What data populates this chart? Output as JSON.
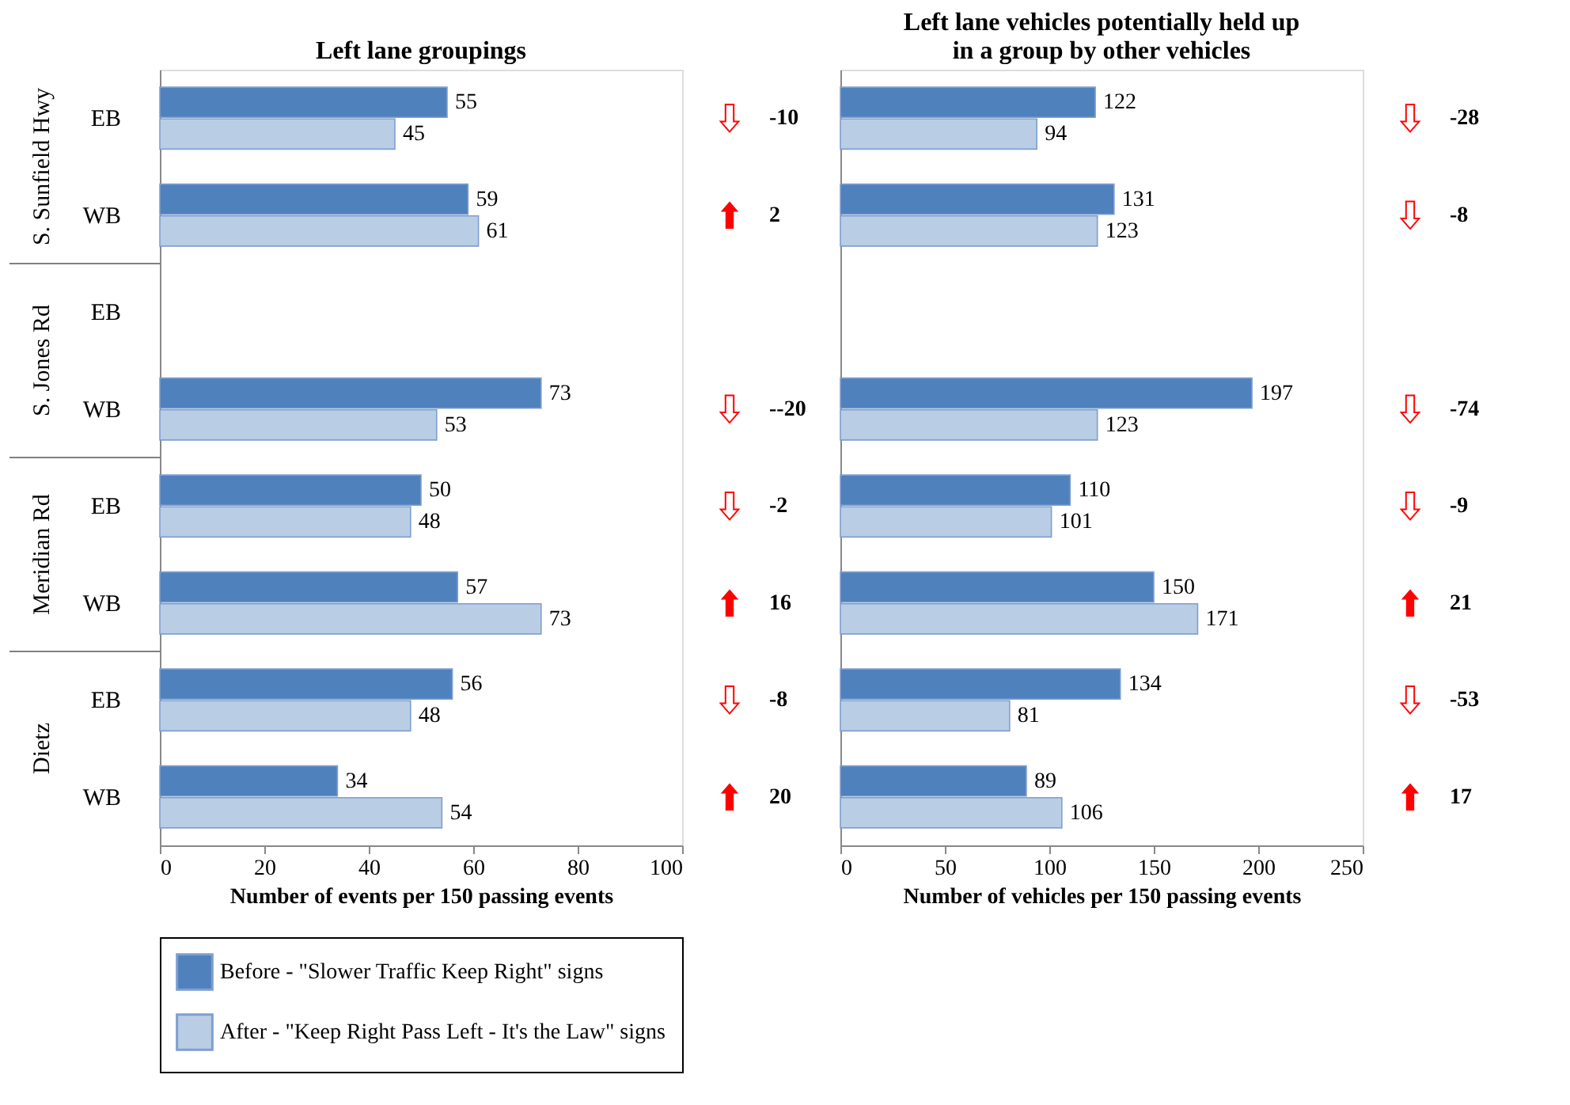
{
  "chart_data": [
    {
      "type": "bar",
      "orientation": "horizontal",
      "title": "Left lane groupings",
      "xlabel": "Number of events per 150 passing events",
      "categories": [
        "EB",
        "WB",
        "EB",
        "WB",
        "EB",
        "WB",
        "EB",
        "WB"
      ],
      "series": [
        {
          "name": "Before - \"Slower  Traffic Keep Right\" signs",
          "color": "#4f81bd",
          "values": [
            55,
            59,
            null,
            73,
            50,
            57,
            56,
            34
          ]
        },
        {
          "name": "After - \"Keep Right Pass Left - It's the Law\" signs",
          "color": "#b9cde5",
          "values": [
            45,
            61,
            null,
            53,
            48,
            73,
            48,
            54
          ]
        }
      ],
      "xlim": [
        0,
        100
      ],
      "xticks": [
        0,
        20,
        40,
        60,
        80,
        100
      ],
      "data_labels": true,
      "legend": "bottom",
      "grid": false,
      "annotations": [
        "S. Sunfield Hwy",
        "S. Jones Rd",
        "Meridian Rd",
        "Dietz",
        "-10",
        "2",
        "--20",
        "-2",
        "16",
        "-8",
        "20"
      ]
    },
    {
      "type": "bar",
      "orientation": "horizontal",
      "title": "Left lane vehicles potentially held up\nin a group by other vehicles",
      "xlabel": "Number of vehicles per 150 passing events",
      "categories": [
        "EB",
        "WB",
        "EB",
        "WB",
        "EB",
        "WB",
        "EB",
        "WB"
      ],
      "series": [
        {
          "name": "Before - \"Slower  Traffic Keep Right\" signs",
          "color": "#4f81bd",
          "values": [
            122,
            131,
            null,
            197,
            110,
            150,
            134,
            89
          ]
        },
        {
          "name": "After - \"Keep Right Pass Left - It's the Law\" signs",
          "color": "#b9cde5",
          "values": [
            94,
            123,
            null,
            123,
            101,
            171,
            81,
            106
          ]
        }
      ],
      "xlim": [
        0,
        250
      ],
      "xticks": [
        0,
        50,
        100,
        150,
        200,
        250
      ],
      "data_labels": true,
      "legend": "bottom",
      "grid": false,
      "tick_labels": "x",
      "annotations": [
        "-28",
        "-8",
        "-74",
        "-9",
        "21",
        "-53",
        "17"
      ]
    }
  ]
}
